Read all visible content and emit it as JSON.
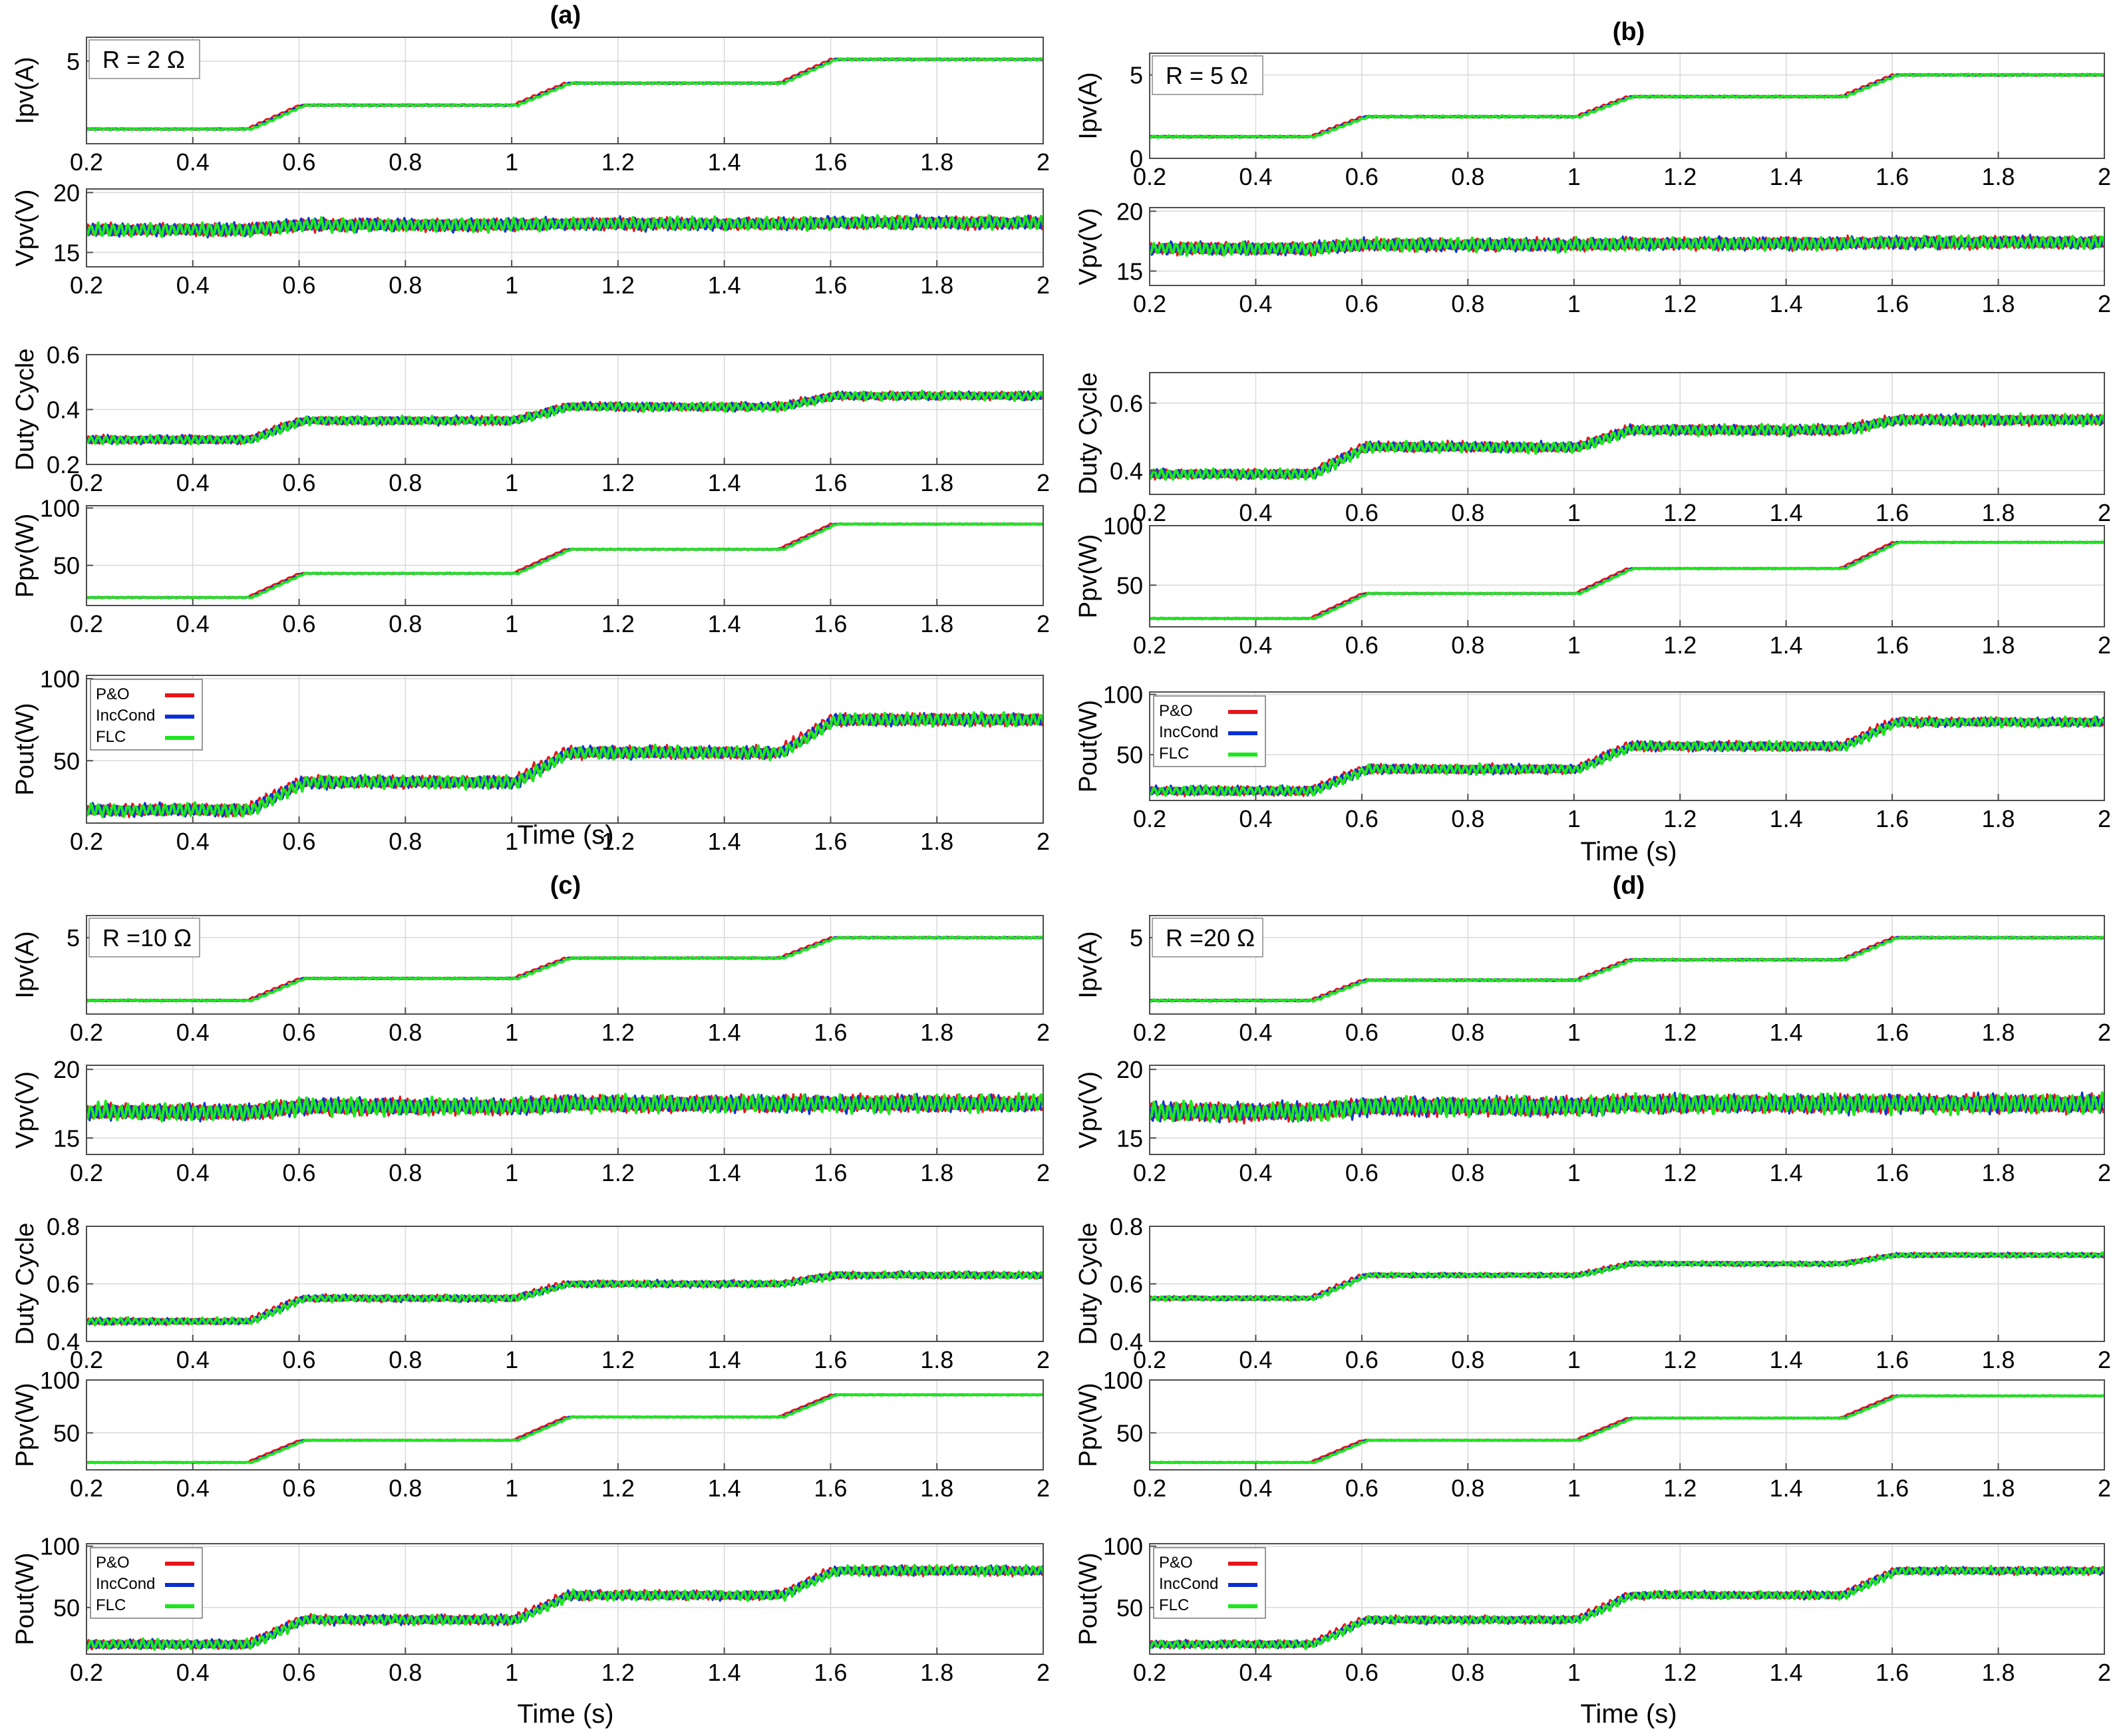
{
  "figure": {
    "colors": {
      "po": "#e8141b",
      "inccond": "#0a2fd6",
      "flc": "#1ee61e",
      "grid": "#d9d9d9",
      "axis": "#4d4d4d"
    },
    "x_ticks": [
      "0.2",
      "0.4",
      "0.6",
      "0.8",
      "1",
      "1.2",
      "1.4",
      "1.6",
      "1.8",
      "2"
    ],
    "xlabel": "Time (s)"
  },
  "chart_data": [
    {
      "panel": "(a)",
      "annotation": "R = 2 Ω",
      "type": "line",
      "xlim": [
        0.2,
        2
      ],
      "legend": [
        "P&O",
        "IncCond",
        "FLC"
      ],
      "legend_placement": "top-left of Pout(W) subplot",
      "subplots": [
        {
          "ylabel": "Ipv(A)",
          "yticks": [
            "5"
          ],
          "ylim": [
            0.5,
            6.3
          ],
          "levels": [
            1.3,
            2.6,
            3.8,
            5.1
          ],
          "noise": 0.06
        },
        {
          "ylabel": "Vpv(V)",
          "yticks": [
            "15",
            "20"
          ],
          "ylim": [
            13.8,
            20.3
          ],
          "levels": [
            16.9,
            17.3,
            17.4,
            17.5
          ],
          "noise": 0.7
        },
        {
          "ylabel": "Duty Cycle",
          "yticks": [
            "0.2",
            "0.4",
            "0.6"
          ],
          "ylim": [
            0.2,
            0.6
          ],
          "levels": [
            0.29,
            0.36,
            0.41,
            0.45
          ],
          "noise": 0.02
        },
        {
          "ylabel": "Ppv(W)",
          "yticks": [
            "50",
            "100"
          ],
          "ylim": [
            15,
            102
          ],
          "levels": [
            22,
            43,
            64,
            86
          ],
          "noise": 0.6
        },
        {
          "ylabel": "Pout(W)",
          "yticks": [
            "50",
            "100"
          ],
          "ylim": [
            12,
            102
          ],
          "levels": [
            20,
            37,
            55,
            75
          ],
          "noise": 5
        }
      ]
    },
    {
      "panel": "(b)",
      "annotation": "R = 5 Ω",
      "type": "line",
      "xlim": [
        0.2,
        2
      ],
      "legend": [
        "P&O",
        "IncCond",
        "FLC"
      ],
      "legend_placement": "top-left of Pout(W) subplot",
      "subplots": [
        {
          "ylabel": "Ipv(A)",
          "yticks": [
            "0",
            "5"
          ],
          "ylim": [
            0,
            6.3
          ],
          "levels": [
            1.3,
            2.5,
            3.7,
            5.0
          ],
          "noise": 0.07
        },
        {
          "ylabel": "Vpv(V)",
          "yticks": [
            "15",
            "20"
          ],
          "ylim": [
            13.8,
            20.3
          ],
          "levels": [
            16.9,
            17.2,
            17.3,
            17.4
          ],
          "noise": 0.7
        },
        {
          "ylabel": "Duty Cycle",
          "yticks": [
            "0.4",
            "0.6"
          ],
          "ylim": [
            0.33,
            0.69
          ],
          "levels": [
            0.39,
            0.47,
            0.52,
            0.55
          ],
          "noise": 0.02
        },
        {
          "ylabel": "Ppv(W)",
          "yticks": [
            "50",
            "100"
          ],
          "ylim": [
            15,
            100
          ],
          "levels": [
            22,
            43,
            64,
            86
          ],
          "noise": 0.6
        },
        {
          "ylabel": "Pout(W)",
          "yticks": [
            "50",
            "100"
          ],
          "ylim": [
            12,
            102
          ],
          "levels": [
            20,
            38,
            57,
            77
          ],
          "noise": 5
        }
      ]
    },
    {
      "panel": "(c)",
      "annotation": "R =10 Ω",
      "type": "line",
      "xlim": [
        0.2,
        2
      ],
      "legend": [
        "P&O",
        "IncCond",
        "FLC"
      ],
      "legend_placement": "top-left of Pout(W) subplot",
      "subplots": [
        {
          "ylabel": "Ipv(A)",
          "yticks": [
            "5"
          ],
          "ylim": [
            0.5,
            6.3
          ],
          "levels": [
            1.3,
            2.6,
            3.8,
            5.0
          ],
          "noise": 0.06
        },
        {
          "ylabel": "Vpv(V)",
          "yticks": [
            "15",
            "20"
          ],
          "ylim": [
            13.8,
            20.3
          ],
          "levels": [
            16.9,
            17.3,
            17.5,
            17.5
          ],
          "noise": 0.8
        },
        {
          "ylabel": "Duty Cycle",
          "yticks": [
            "0.4",
            "0.6",
            "0.8"
          ],
          "ylim": [
            0.4,
            0.8
          ],
          "levels": [
            0.47,
            0.55,
            0.6,
            0.63
          ],
          "noise": 0.015
        },
        {
          "ylabel": "Ppv(W)",
          "yticks": [
            "50",
            "100"
          ],
          "ylim": [
            15,
            100
          ],
          "levels": [
            22,
            43,
            65,
            86
          ],
          "noise": 0.6
        },
        {
          "ylabel": "Pout(W)",
          "yticks": [
            "50",
            "100"
          ],
          "ylim": [
            12,
            102
          ],
          "levels": [
            20,
            40,
            60,
            80
          ],
          "noise": 5
        }
      ]
    },
    {
      "panel": "(d)",
      "annotation": "R =20 Ω",
      "type": "line",
      "xlim": [
        0.2,
        2
      ],
      "legend": [
        "P&O",
        "IncCond",
        "FLC"
      ],
      "legend_placement": "top-left of Pout(W) subplot",
      "subplots": [
        {
          "ylabel": "Ipv(A)",
          "yticks": [
            "5"
          ],
          "ylim": [
            0.5,
            6.3
          ],
          "levels": [
            1.3,
            2.5,
            3.7,
            5.0
          ],
          "noise": 0.07
        },
        {
          "ylabel": "Vpv(V)",
          "yticks": [
            "15",
            "20"
          ],
          "ylim": [
            13.8,
            20.3
          ],
          "levels": [
            16.9,
            17.3,
            17.5,
            17.5
          ],
          "noise": 0.9
        },
        {
          "ylabel": "Duty Cycle",
          "yticks": [
            "0.4",
            "0.6",
            "0.8"
          ],
          "ylim": [
            0.4,
            0.8
          ],
          "levels": [
            0.55,
            0.63,
            0.67,
            0.7
          ],
          "noise": 0.01
        },
        {
          "ylabel": "Ppv(W)",
          "yticks": [
            "50",
            "100"
          ],
          "ylim": [
            15,
            100
          ],
          "levels": [
            22,
            43,
            64,
            85
          ],
          "noise": 0.6
        },
        {
          "ylabel": "Pout(W)",
          "yticks": [
            "50",
            "100"
          ],
          "ylim": [
            12,
            102
          ],
          "levels": [
            20,
            40,
            60,
            80
          ],
          "noise": 4
        }
      ]
    }
  ]
}
